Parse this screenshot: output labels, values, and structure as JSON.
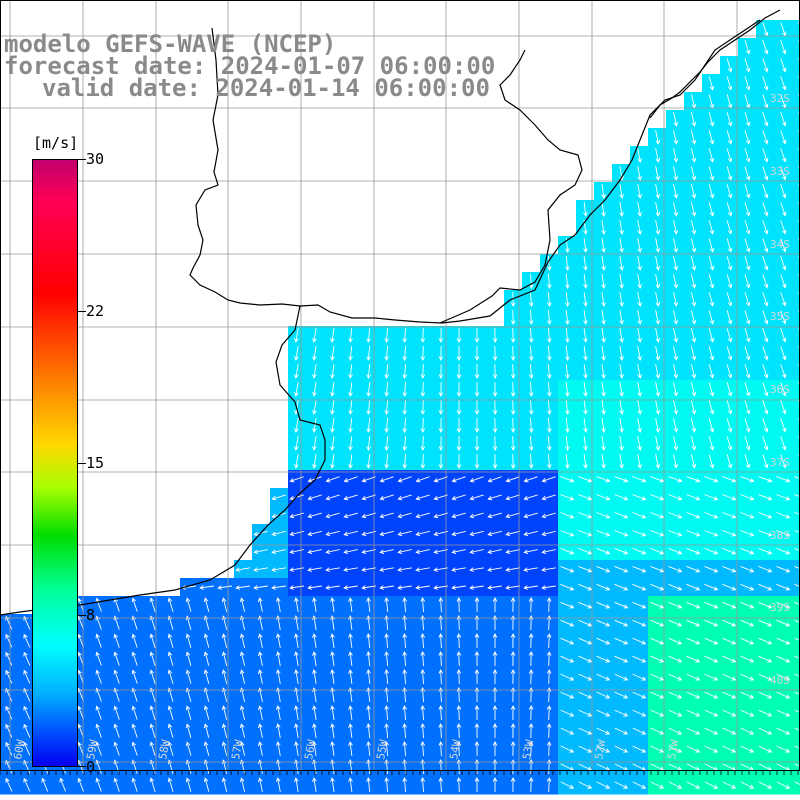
{
  "title": {
    "line1": "modelo GEFS-WAVE (NCEP)",
    "line2": "forecast date: 2024-01-07 06:00:00",
    "line3": "valid date: 2024-01-14 06:00:00"
  },
  "colorbar": {
    "units": "[m/s]",
    "ticks": [
      "30",
      "22",
      "15",
      "8",
      "0"
    ],
    "min": 0,
    "max": 30,
    "colors": [
      "#0000ee",
      "#0055ff",
      "#00b0ff",
      "#00ffff",
      "#00ff99",
      "#00dd00",
      "#a8ff00",
      "#ffd800",
      "#ff6a00",
      "#ff0000",
      "#ff0055",
      "#c2006d"
    ]
  },
  "map": {
    "variable": "wind speed and direction",
    "lat_labels": [
      "32S",
      "33S",
      "34S",
      "35S",
      "36S",
      "37S",
      "38S",
      "39S",
      "40S"
    ],
    "lon_labels": [
      "60W",
      "59W",
      "58W",
      "57W",
      "56W",
      "55W",
      "54W",
      "53W",
      "52W",
      "51W"
    ],
    "land_color": "#ffffff",
    "grid_color": "#999999",
    "arrow_color": "#ffffff"
  }
}
